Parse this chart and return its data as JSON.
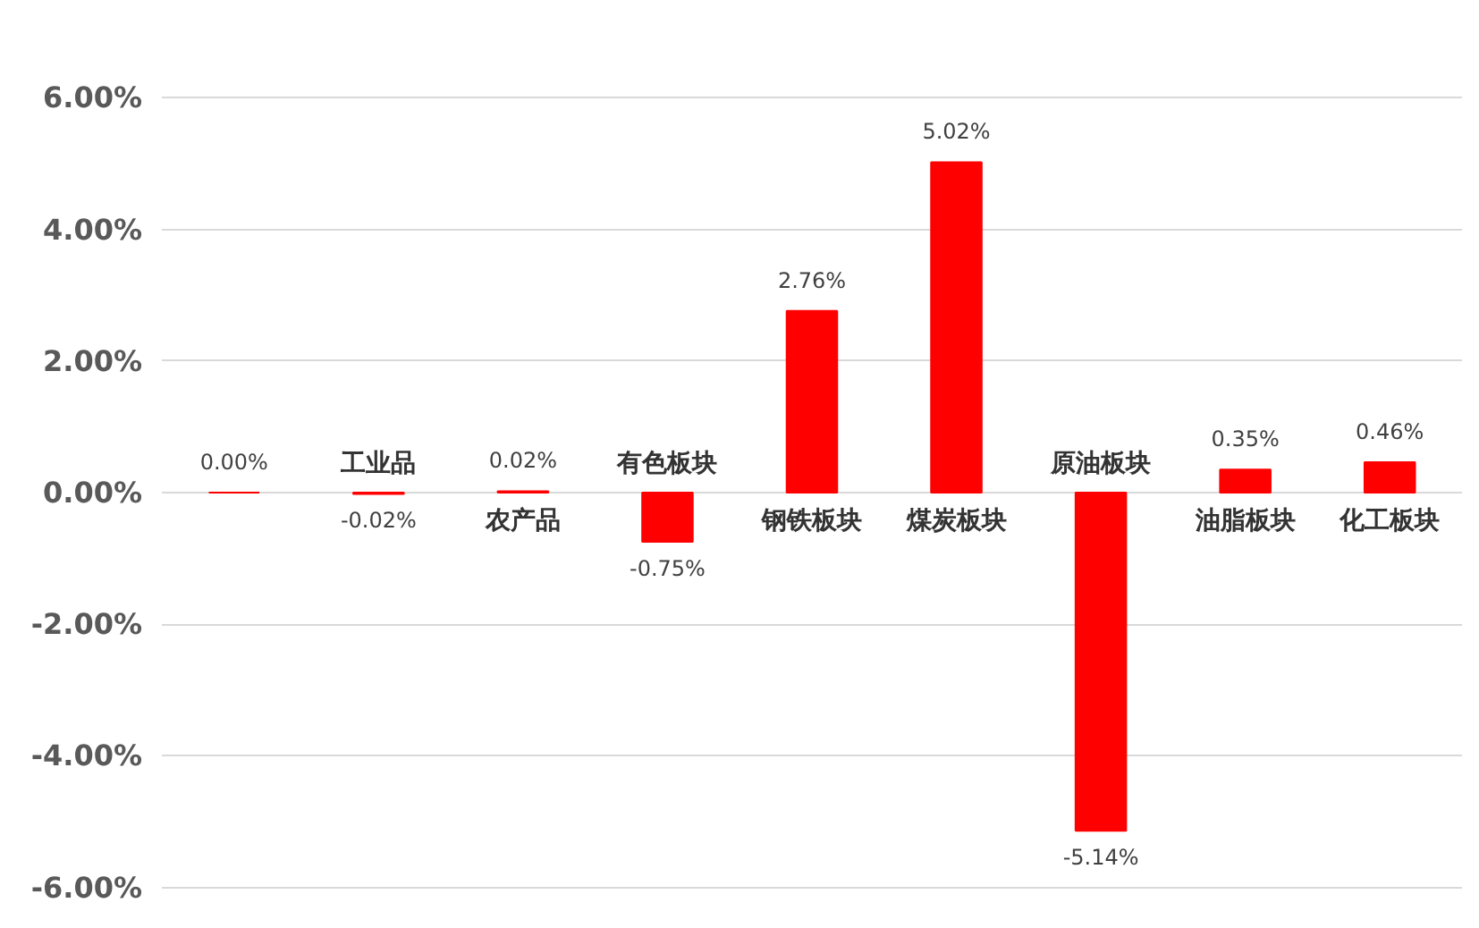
{
  "chart_data": {
    "type": "bar",
    "categories": [
      null,
      "工业品",
      "农产品",
      "有色板块",
      "钢铁板块",
      "煤炭板块",
      "原油板块",
      "油脂板块",
      "化工板块"
    ],
    "values": [
      0.0,
      -0.02,
      0.02,
      -0.75,
      2.76,
      5.02,
      -5.14,
      0.35,
      0.46
    ],
    "value_labels": [
      "0.00%",
      "-0.02%",
      "0.02%",
      "-0.75%",
      "2.76%",
      "5.02%",
      "-5.14%",
      "0.35%",
      "0.46%"
    ],
    "color": "#ff0000",
    "ylim": [
      -6,
      6
    ],
    "yticks": [
      {
        "value": -6,
        "label": "-6.00%"
      },
      {
        "value": -4,
        "label": "-4.00%"
      },
      {
        "value": -2,
        "label": "-2.00%"
      },
      {
        "value": 0,
        "label": "0.00%"
      },
      {
        "value": 2,
        "label": "2.00%"
      },
      {
        "value": 4,
        "label": "4.00%"
      },
      {
        "value": 6,
        "label": "6.00%"
      }
    ],
    "grid": "y"
  }
}
